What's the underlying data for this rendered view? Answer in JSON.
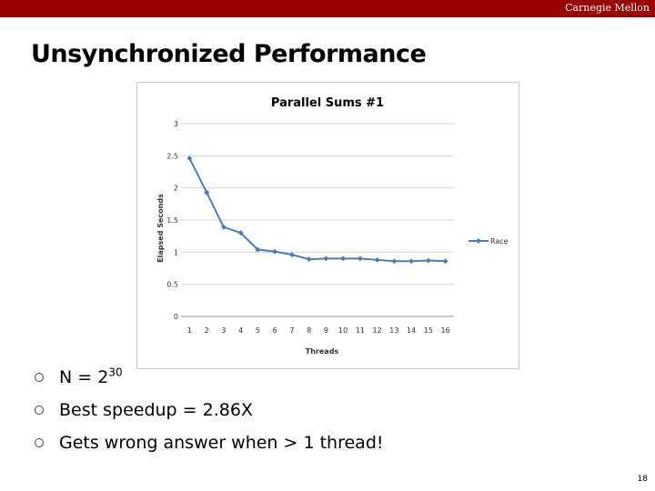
{
  "header": {
    "brand": "Carnegie Mellon"
  },
  "slide": {
    "title": "Unsynchronized Performance",
    "page_number": "18"
  },
  "bullets": [
    {
      "text": "N = 2",
      "superscript": "30"
    },
    {
      "text": "Best speedup = 2.86X"
    },
    {
      "text": "Gets wrong answer when > 1 thread!"
    }
  ],
  "colors": {
    "header_bar": "#9b0000",
    "series": "#4a7ebb"
  },
  "chart_data": {
    "type": "line",
    "title": "Parallel Sums #1",
    "xlabel": "Threads",
    "ylabel": "Elapsed Seconds",
    "x": [
      1,
      2,
      3,
      4,
      5,
      6,
      7,
      8,
      9,
      10,
      11,
      12,
      13,
      14,
      15,
      16
    ],
    "ylim": [
      0,
      3
    ],
    "yticks": [
      "0",
      "0.5",
      "1",
      "1.5",
      "2",
      "2.5",
      "3"
    ],
    "grid": true,
    "legend_position": "right",
    "series": [
      {
        "name": "Race",
        "values": [
          2.46,
          1.93,
          1.39,
          1.3,
          1.04,
          1.01,
          0.96,
          0.89,
          0.9,
          0.9,
          0.9,
          0.88,
          0.86,
          0.86,
          0.87,
          0.86
        ]
      }
    ]
  }
}
